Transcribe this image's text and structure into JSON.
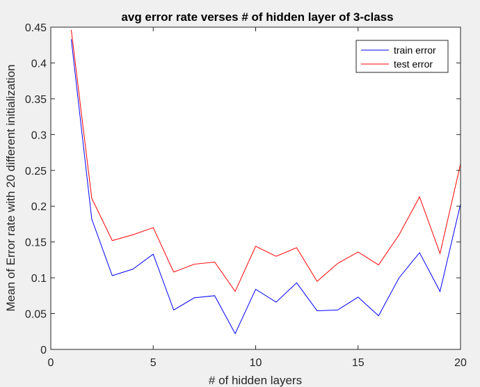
{
  "chart_data": {
    "type": "line",
    "title": "avg error rate verses # of hidden layer of 3-class",
    "xlabel": "# of hidden layers",
    "ylabel": "Mean of Error rate with 20 different initialization",
    "xlim": [
      0,
      20
    ],
    "ylim": [
      0,
      0.45
    ],
    "xticks": [
      0,
      5,
      10,
      15,
      20
    ],
    "yticks": [
      0,
      0.05,
      0.1,
      0.15,
      0.2,
      0.25,
      0.3,
      0.35,
      0.4,
      0.45
    ],
    "grid": false,
    "legend_position": "top-right",
    "x": [
      1,
      2,
      3,
      4,
      5,
      6,
      7,
      8,
      9,
      10,
      11,
      12,
      13,
      14,
      15,
      16,
      17,
      18,
      19,
      20
    ],
    "series": [
      {
        "name": "train error",
        "color": "#0000ff",
        "values": [
          0.433,
          0.182,
          0.103,
          0.112,
          0.133,
          0.055,
          0.072,
          0.075,
          0.022,
          0.084,
          0.066,
          0.093,
          0.054,
          0.055,
          0.073,
          0.047,
          0.1,
          0.135,
          0.081,
          0.203
        ]
      },
      {
        "name": "test error",
        "color": "#ff0000",
        "values": [
          0.446,
          0.211,
          0.152,
          0.16,
          0.17,
          0.108,
          0.119,
          0.122,
          0.081,
          0.144,
          0.13,
          0.142,
          0.095,
          0.12,
          0.136,
          0.118,
          0.16,
          0.213,
          0.134,
          0.259
        ]
      }
    ]
  }
}
